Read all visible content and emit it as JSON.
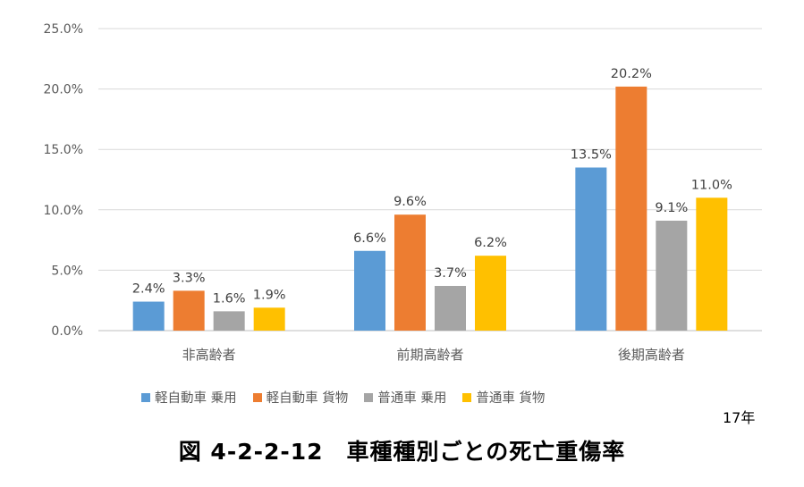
{
  "chart_data": {
    "type": "bar",
    "categories": [
      "非高齢者",
      "前期高齢者",
      "後期高齢者"
    ],
    "series": [
      {
        "name": "軽自動車 乗用",
        "values": [
          2.4,
          6.6,
          13.5
        ],
        "labels": [
          "2.4%",
          "6.6%",
          "13.5%"
        ],
        "color": "#5B9BD5"
      },
      {
        "name": "軽自動車 貨物",
        "values": [
          3.3,
          9.6,
          20.2
        ],
        "labels": [
          "3.3%",
          "9.6%",
          "20.2%"
        ],
        "color": "#ED7D31"
      },
      {
        "name": "普通車 乗用",
        "values": [
          1.6,
          3.7,
          9.1
        ],
        "labels": [
          "1.6%",
          "3.7%",
          "9.1%"
        ],
        "color": "#A5A5A5"
      },
      {
        "name": "普通車 貨物",
        "values": [
          1.9,
          6.2,
          11.0
        ],
        "labels": [
          "1.9%",
          "6.2%",
          "11.0%"
        ],
        "color": "#FFC000"
      }
    ],
    "yticks": [
      "0.0%",
      "5.0%",
      "10.0%",
      "15.0%",
      "20.0%",
      "25.0%"
    ],
    "ylim": [
      0,
      25
    ],
    "grid": true,
    "legend_position": "bottom"
  },
  "year_note": "17年",
  "caption": "図 4-2-2-12　車種種別ごとの死亡重傷率"
}
